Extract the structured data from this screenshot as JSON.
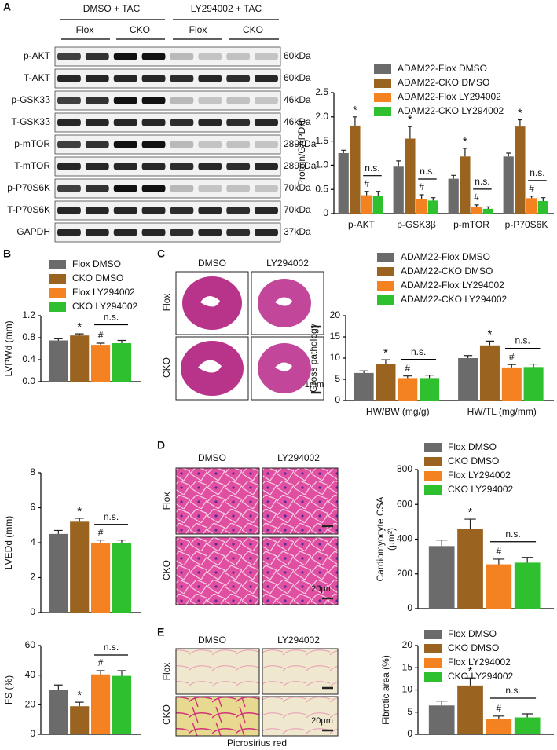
{
  "panels": {
    "a": "A",
    "b": "B",
    "c": "C",
    "d": "D",
    "e": "E"
  },
  "blot": {
    "groups": [
      "DMSO + TAC",
      "LY294002 + TAC"
    ],
    "subgroups": [
      "Flox",
      "CKO",
      "Flox",
      "CKO"
    ],
    "rows": [
      {
        "label": "p-AKT",
        "size": "60kDa"
      },
      {
        "label": "T-AKT",
        "size": "60kDa"
      },
      {
        "label": "p-GSK3β",
        "size": "46kDa"
      },
      {
        "label": "T-GSK3β",
        "size": "46kDa"
      },
      {
        "label": "p-mTOR",
        "size": "289kDa"
      },
      {
        "label": "T-mTOR",
        "size": "289kDa"
      },
      {
        "label": "p-P70S6K",
        "size": "70kDa"
      },
      {
        "label": "T-P70S6K",
        "size": "70kDa"
      },
      {
        "label": "GAPDH",
        "size": "37kDa"
      }
    ]
  },
  "histology": {
    "c": {
      "columns": [
        "DMSO",
        "LY294002"
      ],
      "rows": [
        "Flox",
        "CKO"
      ],
      "scale": "1mm"
    },
    "d": {
      "columns": [
        "DMSO",
        "LY294002"
      ],
      "rows": [
        "Flox",
        "CKO"
      ],
      "scale": "20μm"
    },
    "e": {
      "columns": [
        "DMSO",
        "LY294002"
      ],
      "rows": [
        "Flox",
        "CKO"
      ],
      "scale": "20μm",
      "stain": "Picrosirius red"
    }
  },
  "chart_data": [
    {
      "type": "bar",
      "ylabel": [
        "Protein/GAPDH"
      ],
      "legend": "upper right",
      "categories": [
        "p-AKT",
        "p-GSK3β",
        "p-mTOR",
        "p-P70S6K"
      ],
      "ylim": [
        0,
        2.5
      ],
      "yticks": [
        0,
        0.5,
        {
          "value": 1,
          "label": "1.0"
        },
        1.5,
        {
          "value": 2,
          "label": "2.0"
        },
        2.5
      ],
      "annotations": [
        "*",
        "#",
        "n.s."
      ],
      "series": [
        {
          "name": "ADAM22-Flox DMSO",
          "color": "#6b6b6b",
          "values": [
            1.25,
            0.97,
            0.72,
            1.18
          ],
          "errors": [
            0.06,
            0.12,
            0.07,
            0.07
          ]
        },
        {
          "name": "ADAM22-CKO DMSO",
          "color": "#9a6420",
          "values": [
            1.82,
            1.55,
            1.18,
            1.8
          ],
          "errors": [
            0.18,
            0.25,
            0.17,
            0.14
          ]
        },
        {
          "name": "ADAM22-Flox LY294002",
          "color": "#f58220",
          "values": [
            0.38,
            0.3,
            0.13,
            0.32
          ],
          "errors": [
            0.08,
            0.09,
            0.05,
            0.04
          ]
        },
        {
          "name": "ADAM22-CKO LY294002",
          "color": "#2ec02e",
          "values": [
            0.37,
            0.27,
            0.1,
            0.26
          ],
          "errors": [
            0.09,
            0.06,
            0.04,
            0.07
          ]
        }
      ]
    },
    {
      "type": "bar",
      "ylabel": [
        "LVPWd (mm)"
      ],
      "legend": "upper left",
      "ylim": [
        0,
        1.2
      ],
      "yticks": [
        {
          "value": 0,
          "label": "0.0"
        },
        0.4,
        0.8,
        1.2
      ],
      "annotations": [
        "*",
        "#",
        "n.s."
      ],
      "series": [
        {
          "name": "Flox DMSO",
          "color": "#6b6b6b",
          "values": [
            0.75
          ],
          "errors": [
            0.03
          ]
        },
        {
          "name": "CKO DMSO",
          "color": "#9a6420",
          "values": [
            0.84
          ],
          "errors": [
            0.03
          ]
        },
        {
          "name": "Flox LY294002",
          "color": "#f58220",
          "values": [
            0.67
          ],
          "errors": [
            0.03
          ]
        },
        {
          "name": "CKO LY294002",
          "color": "#2ec02e",
          "values": [
            0.7
          ],
          "errors": [
            0.05
          ]
        }
      ]
    },
    {
      "type": "bar",
      "ylabel": [
        "LVEDd (mm)"
      ],
      "ylim": [
        0,
        8
      ],
      "yticks": [
        0,
        2,
        4,
        6,
        8
      ],
      "annotations": [
        "*",
        "#",
        "n.s."
      ],
      "series": [
        {
          "color": "#6b6b6b",
          "values": [
            4.5
          ],
          "errors": [
            0.2
          ]
        },
        {
          "color": "#9a6420",
          "values": [
            5.2
          ],
          "errors": [
            0.2
          ]
        },
        {
          "color": "#f58220",
          "values": [
            4.0
          ],
          "errors": [
            0.15
          ]
        },
        {
          "color": "#2ec02e",
          "values": [
            4.0
          ],
          "errors": [
            0.15
          ]
        }
      ]
    },
    {
      "type": "bar",
      "ylabel": [
        "FS (%)"
      ],
      "ylim": [
        0,
        60
      ],
      "yticks": [
        0,
        20,
        40,
        60
      ],
      "annotations": [
        "*",
        "#",
        "n.s."
      ],
      "series": [
        {
          "color": "#6b6b6b",
          "values": [
            30
          ],
          "errors": [
            3.3
          ]
        },
        {
          "color": "#9a6420",
          "values": [
            19
          ],
          "errors": [
            2.7
          ]
        },
        {
          "color": "#f58220",
          "values": [
            40.5
          ],
          "errors": [
            2.5
          ]
        },
        {
          "color": "#2ec02e",
          "values": [
            39.5
          ],
          "errors": [
            3.5
          ]
        }
      ]
    },
    {
      "type": "bar",
      "ylabel": [
        "Gross pathology"
      ],
      "legend": "upper right",
      "categories": [
        "HW/BW (mg/g)",
        "HW/TL (mg/mm)"
      ],
      "ylim": [
        0,
        20
      ],
      "yticks": [
        0,
        5,
        10,
        15,
        20
      ],
      "annotations": [
        "*",
        "#",
        "n.s."
      ],
      "series": [
        {
          "name": "ADAM22-Flox DMSO",
          "color": "#6b6b6b",
          "values": [
            6.5,
            10
          ],
          "errors": [
            0.5,
            0.6
          ]
        },
        {
          "name": "ADAM22-CKO DMSO",
          "color": "#9a6420",
          "values": [
            8.6,
            13
          ],
          "errors": [
            1.0,
            1.0
          ]
        },
        {
          "name": "ADAM22-Flox LY294002",
          "color": "#f58220",
          "values": [
            5.3,
            7.8
          ],
          "errors": [
            0.5,
            0.7
          ]
        },
        {
          "name": "ADAM22-CKO LY294002",
          "color": "#2ec02e",
          "values": [
            5.3,
            7.9
          ],
          "errors": [
            0.7,
            0.7
          ]
        }
      ]
    },
    {
      "type": "bar",
      "ylabel": [
        "Cardiomyocyte  CSA",
        "(μm²)"
      ],
      "legend": "upper right",
      "ylim": [
        0,
        800
      ],
      "yticks": [
        0,
        200,
        400,
        600,
        800
      ],
      "annotations": [
        "*",
        "#",
        "n.s."
      ],
      "series": [
        {
          "name": "Flox DMSO",
          "color": "#6b6b6b",
          "values": [
            360
          ],
          "errors": [
            35
          ]
        },
        {
          "name": "CKO DMSO",
          "color": "#9a6420",
          "values": [
            460
          ],
          "errors": [
            55
          ]
        },
        {
          "name": "Flox LY294002",
          "color": "#f58220",
          "values": [
            255
          ],
          "errors": [
            30
          ]
        },
        {
          "name": "CKO LY294002",
          "color": "#2ec02e",
          "values": [
            265
          ],
          "errors": [
            30
          ]
        }
      ]
    },
    {
      "type": "bar",
      "ylabel": [
        "Fibrotic area (%)"
      ],
      "legend": "upper right",
      "ylim": [
        0,
        20
      ],
      "yticks": [
        0,
        5,
        10,
        15,
        20
      ],
      "annotations": [
        "*",
        "#",
        "n.s."
      ],
      "series": [
        {
          "name": "Flox DMSO",
          "color": "#6b6b6b",
          "values": [
            6.5
          ],
          "errors": [
            1.0
          ]
        },
        {
          "name": "CKO DMSO",
          "color": "#9a6420",
          "values": [
            11
          ],
          "errors": [
            1.7
          ]
        },
        {
          "name": "Flox LY294002",
          "color": "#f58220",
          "values": [
            3.4
          ],
          "errors": [
            0.7
          ]
        },
        {
          "name": "CKO LY294002",
          "color": "#2ec02e",
          "values": [
            3.8
          ],
          "errors": [
            0.8
          ]
        }
      ]
    }
  ]
}
